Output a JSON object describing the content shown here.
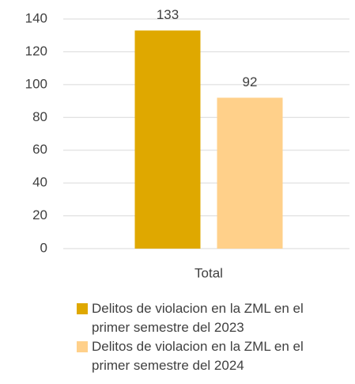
{
  "chart_data": {
    "type": "bar",
    "categories": [
      "Total"
    ],
    "series": [
      {
        "name": "Delitos de violacion en la ZML en el primer semestre del 2023",
        "color": "#dfa800",
        "values": [
          133
        ]
      },
      {
        "name": "Delitos de violacion en la ZML en el primer semestre del 2024",
        "color": "#ffd08a",
        "values": [
          92
        ]
      }
    ],
    "ylim": [
      0,
      140
    ],
    "yticks": [
      0,
      20,
      40,
      60,
      80,
      100,
      120,
      140
    ],
    "grid": true,
    "legend": "bottom"
  }
}
